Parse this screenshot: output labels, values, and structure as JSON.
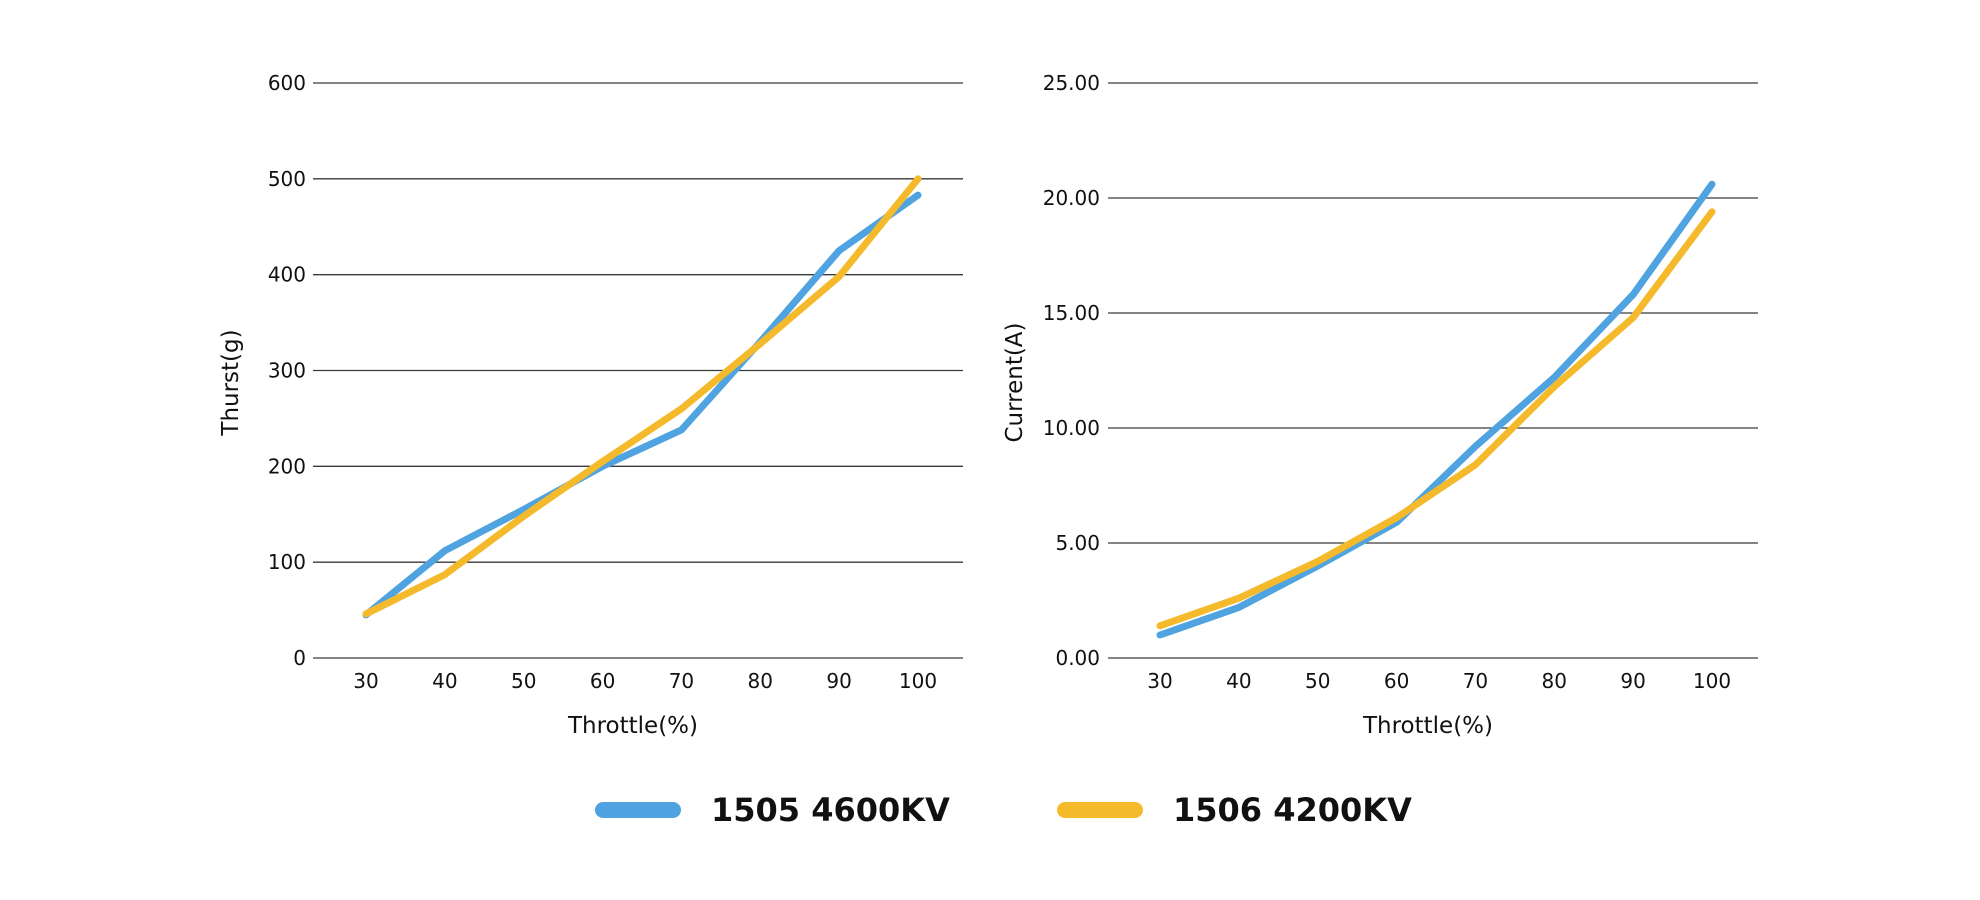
{
  "chart_data": [
    {
      "type": "line",
      "title": "",
      "xlabel": "Throttle(%)",
      "ylabel": "Thurst(g)",
      "x": [
        30,
        40,
        50,
        60,
        70,
        80,
        90,
        100
      ],
      "x_ticks": [
        "30",
        "40",
        "50",
        "60",
        "70",
        "80",
        "90",
        "100"
      ],
      "ylim": [
        0,
        600
      ],
      "y_ticks": [
        "0",
        "100",
        "200",
        "300",
        "400",
        "500",
        "600"
      ],
      "grid": true,
      "series": [
        {
          "name": "1505 4600KV",
          "color": "#4EA3E0",
          "values": [
            45,
            112,
            155,
            200,
            238,
            330,
            425,
            483
          ]
        },
        {
          "name": "1506 4200KV",
          "color": "#F5BA2B",
          "values": [
            46,
            87,
            148,
            205,
            260,
            328,
            398,
            500
          ]
        }
      ]
    },
    {
      "type": "line",
      "title": "",
      "xlabel": "Throttle(%)",
      "ylabel": "Current(A)",
      "x": [
        30,
        40,
        50,
        60,
        70,
        80,
        90,
        100
      ],
      "x_ticks": [
        "30",
        "40",
        "50",
        "60",
        "70",
        "80",
        "90",
        "100"
      ],
      "ylim": [
        0,
        25
      ],
      "y_ticks": [
        "0.00",
        "5.00",
        "10.00",
        "15.00",
        "20.00",
        "25.00"
      ],
      "grid": true,
      "series": [
        {
          "name": "1505 4600KV",
          "color": "#4EA3E0",
          "values": [
            1.0,
            2.2,
            4.0,
            5.9,
            9.2,
            12.2,
            15.8,
            20.6
          ]
        },
        {
          "name": "1506 4200KV",
          "color": "#F5BA2B",
          "values": [
            1.4,
            2.6,
            4.2,
            6.1,
            8.4,
            11.8,
            14.8,
            19.4
          ]
        }
      ]
    }
  ],
  "legend": {
    "placement": "bottom-center",
    "items": [
      {
        "label": "1505 4600KV",
        "color": "#4EA3E0"
      },
      {
        "label": "1506 4200KV",
        "color": "#F5BA2B"
      }
    ]
  }
}
